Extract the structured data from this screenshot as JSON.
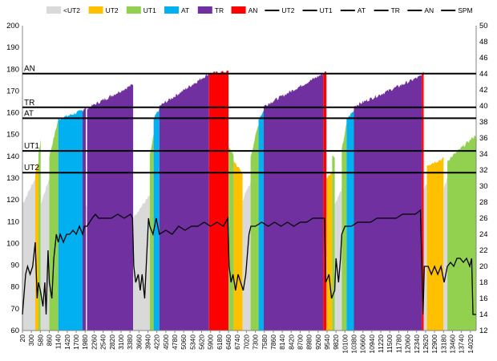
{
  "chart_data": {
    "type": "area",
    "legend_position": "top",
    "grid": false,
    "x": {
      "min": 20,
      "max": 14200,
      "ticks": [
        20,
        300,
        580,
        860,
        1140,
        1420,
        1700,
        1980,
        2260,
        2540,
        2820,
        3100,
        3380,
        3660,
        3940,
        4220,
        4500,
        4780,
        5060,
        5340,
        5620,
        5900,
        6180,
        6460,
        6740,
        7020,
        7300,
        7580,
        7860,
        8140,
        8420,
        8700,
        8980,
        9260,
        9540,
        9820,
        10100,
        10380,
        10660,
        10940,
        11220,
        11500,
        11780,
        12060,
        12340,
        12620,
        12900,
        13180,
        13460,
        13740,
        14020
      ]
    },
    "y_left": {
      "min": 60,
      "max": 200,
      "ticks": [
        60,
        70,
        80,
        90,
        100,
        110,
        120,
        130,
        140,
        150,
        160,
        170,
        180,
        190,
        200
      ]
    },
    "y_right": {
      "min": 12,
      "max": 50,
      "ticks": [
        12,
        14,
        16,
        18,
        20,
        22,
        24,
        26,
        28,
        30,
        32,
        34,
        36,
        38,
        40,
        42,
        44,
        46,
        48,
        50
      ]
    },
    "zones": [
      {
        "name": "<UT2",
        "color": "#d9d9d9"
      },
      {
        "name": "UT2",
        "color": "#ffc000"
      },
      {
        "name": "UT1",
        "color": "#92d050"
      },
      {
        "name": "AT",
        "color": "#00b0f0"
      },
      {
        "name": "TR",
        "color": "#7030a0"
      },
      {
        "name": "AN",
        "color": "#ff0000"
      }
    ],
    "thresholds": [
      {
        "name": "UT2",
        "value": 132.5
      },
      {
        "name": "UT1",
        "value": 142.5
      },
      {
        "name": "AT",
        "value": 157.5
      },
      {
        "name": "TR",
        "value": 162.5
      },
      {
        "name": "AN",
        "value": 178
      }
    ],
    "hr_segments": [
      {
        "x0": 20,
        "x1": 420,
        "y0": 118,
        "y1": 130,
        "zone": "<UT2"
      },
      {
        "x0": 420,
        "x1": 520,
        "y0": 132,
        "y1": 138,
        "zone": "UT2"
      },
      {
        "x0": 520,
        "x1": 590,
        "y0": 140,
        "y1": 148,
        "zone": "UT1"
      },
      {
        "x0": 590,
        "x1": 860,
        "y0": 118,
        "y1": 130,
        "zone": "<UT2"
      },
      {
        "x0": 860,
        "x1": 1140,
        "y0": 140,
        "y1": 157,
        "zone": "UT1"
      },
      {
        "x0": 1140,
        "x1": 1900,
        "y0": 157,
        "y1": 161,
        "zone": "AT"
      },
      {
        "x0": 1900,
        "x1": 2000,
        "y0": 161,
        "y1": 163,
        "zone": "TR"
      },
      {
        "x0": 2000,
        "x1": 2040,
        "y0": 117,
        "y1": 117,
        "zone": "<UT2"
      },
      {
        "x0": 2040,
        "x1": 3480,
        "y0": 162,
        "y1": 173,
        "zone": "TR"
      },
      {
        "x0": 3480,
        "x1": 4000,
        "y0": 112,
        "y1": 122,
        "zone": "<UT2"
      },
      {
        "x0": 4000,
        "x1": 4120,
        "y0": 140,
        "y1": 150,
        "zone": "UT1"
      },
      {
        "x0": 4120,
        "x1": 4300,
        "y0": 157,
        "y1": 162,
        "zone": "AT"
      },
      {
        "x0": 4300,
        "x1": 5850,
        "y0": 163,
        "y1": 178,
        "zone": "TR"
      },
      {
        "x0": 5850,
        "x1": 6460,
        "y0": 178,
        "y1": 179,
        "zone": "AN"
      },
      {
        "x0": 6460,
        "x1": 6620,
        "y0": 145,
        "y1": 140,
        "zone": "UT1"
      },
      {
        "x0": 6620,
        "x1": 6900,
        "y0": 138,
        "y1": 132,
        "zone": "UT2"
      },
      {
        "x0": 6900,
        "x1": 7150,
        "y0": 120,
        "y1": 128,
        "zone": "<UT2"
      },
      {
        "x0": 7150,
        "x1": 7400,
        "y0": 140,
        "y1": 155,
        "zone": "UT1"
      },
      {
        "x0": 7400,
        "x1": 7560,
        "y0": 157,
        "y1": 161,
        "zone": "AT"
      },
      {
        "x0": 7560,
        "x1": 9420,
        "y0": 163,
        "y1": 178,
        "zone": "TR"
      },
      {
        "x0": 9420,
        "x1": 9520,
        "y0": 178,
        "y1": 179,
        "zone": "AN"
      },
      {
        "x0": 9520,
        "x1": 9700,
        "y0": 130,
        "y1": 133,
        "zone": "UT2"
      },
      {
        "x0": 9700,
        "x1": 9780,
        "y0": 140,
        "y1": 140,
        "zone": "UT1"
      },
      {
        "x0": 9780,
        "x1": 10000,
        "y0": 118,
        "y1": 125,
        "zone": "<UT2"
      },
      {
        "x0": 10000,
        "x1": 10150,
        "y0": 143,
        "y1": 155,
        "zone": "UT1"
      },
      {
        "x0": 10150,
        "x1": 10380,
        "y0": 157,
        "y1": 161,
        "zone": "AT"
      },
      {
        "x0": 10380,
        "x1": 12500,
        "y0": 163,
        "y1": 177,
        "zone": "TR"
      },
      {
        "x0": 12500,
        "x1": 12560,
        "y0": 178,
        "y1": 178,
        "zone": "AN"
      },
      {
        "x0": 12560,
        "x1": 12660,
        "y0": 125,
        "y1": 128,
        "zone": "<UT2"
      },
      {
        "x0": 12660,
        "x1": 13180,
        "y0": 136,
        "y1": 139,
        "zone": "UT2"
      },
      {
        "x0": 13180,
        "x1": 13300,
        "y0": 125,
        "y1": 130,
        "zone": "<UT2"
      },
      {
        "x0": 13300,
        "x1": 14200,
        "y0": 138,
        "y1": 150,
        "zone": "UT1"
      }
    ],
    "spm": [
      [
        20,
        14
      ],
      [
        120,
        19
      ],
      [
        180,
        20
      ],
      [
        260,
        19
      ],
      [
        340,
        20
      ],
      [
        420,
        23
      ],
      [
        480,
        16
      ],
      [
        520,
        18
      ],
      [
        580,
        17
      ],
      [
        660,
        15
      ],
      [
        720,
        18
      ],
      [
        760,
        14
      ],
      [
        820,
        22
      ],
      [
        860,
        18
      ],
      [
        940,
        16
      ],
      [
        1000,
        21
      ],
      [
        1080,
        24
      ],
      [
        1140,
        23
      ],
      [
        1200,
        24
      ],
      [
        1300,
        23
      ],
      [
        1400,
        24
      ],
      [
        1500,
        24
      ],
      [
        1600,
        24.5
      ],
      [
        1700,
        24
      ],
      [
        1800,
        25
      ],
      [
        1900,
        24
      ],
      [
        1960,
        25
      ],
      [
        2040,
        25
      ],
      [
        2200,
        26
      ],
      [
        2300,
        26.5
      ],
      [
        2400,
        26
      ],
      [
        2600,
        26
      ],
      [
        2800,
        26
      ],
      [
        3000,
        26.5
      ],
      [
        3200,
        26
      ],
      [
        3400,
        26.5
      ],
      [
        3460,
        26
      ],
      [
        3500,
        20
      ],
      [
        3560,
        18
      ],
      [
        3640,
        19
      ],
      [
        3700,
        17
      ],
      [
        3760,
        19
      ],
      [
        3840,
        16
      ],
      [
        3900,
        21
      ],
      [
        3960,
        26
      ],
      [
        4000,
        25
      ],
      [
        4100,
        24
      ],
      [
        4200,
        26
      ],
      [
        4300,
        24
      ],
      [
        4500,
        24.5
      ],
      [
        4700,
        24
      ],
      [
        4900,
        25
      ],
      [
        5100,
        24.5
      ],
      [
        5300,
        25
      ],
      [
        5500,
        25
      ],
      [
        5700,
        25.5
      ],
      [
        5900,
        25
      ],
      [
        6100,
        25.5
      ],
      [
        6300,
        25
      ],
      [
        6440,
        26
      ],
      [
        6480,
        20
      ],
      [
        6540,
        18
      ],
      [
        6600,
        19
      ],
      [
        6680,
        17
      ],
      [
        6760,
        19
      ],
      [
        6840,
        18
      ],
      [
        6920,
        17
      ],
      [
        7000,
        19
      ],
      [
        7100,
        24
      ],
      [
        7160,
        25
      ],
      [
        7300,
        25
      ],
      [
        7500,
        25.5
      ],
      [
        7700,
        25
      ],
      [
        7900,
        25.5
      ],
      [
        8100,
        25
      ],
      [
        8300,
        25.5
      ],
      [
        8500,
        25
      ],
      [
        8700,
        25.5
      ],
      [
        8900,
        25.5
      ],
      [
        9100,
        26
      ],
      [
        9300,
        26
      ],
      [
        9460,
        26
      ],
      [
        9500,
        18
      ],
      [
        9600,
        19
      ],
      [
        9680,
        16
      ],
      [
        9780,
        17
      ],
      [
        9820,
        21
      ],
      [
        9900,
        18
      ],
      [
        9960,
        21
      ],
      [
        10000,
        24
      ],
      [
        10100,
        25
      ],
      [
        10300,
        25
      ],
      [
        10500,
        25.5
      ],
      [
        10700,
        25.5
      ],
      [
        10900,
        25.5
      ],
      [
        11100,
        26
      ],
      [
        11300,
        26
      ],
      [
        11500,
        26
      ],
      [
        11700,
        26
      ],
      [
        11900,
        26.5
      ],
      [
        12100,
        26.5
      ],
      [
        12300,
        26.5
      ],
      [
        12460,
        27
      ],
      [
        12540,
        14
      ],
      [
        12580,
        20
      ],
      [
        12700,
        20
      ],
      [
        12800,
        19
      ],
      [
        12900,
        20
      ],
      [
        13000,
        19
      ],
      [
        13100,
        20
      ],
      [
        13200,
        18
      ],
      [
        13300,
        20
      ],
      [
        13400,
        20.5
      ],
      [
        13500,
        20
      ],
      [
        13600,
        21
      ],
      [
        13700,
        21
      ],
      [
        13800,
        20.5
      ],
      [
        13900,
        21
      ],
      [
        14000,
        20
      ],
      [
        14060,
        21
      ],
      [
        14100,
        14
      ],
      [
        14200,
        14
      ]
    ]
  },
  "legend": [
    {
      "label": "<UT2",
      "kind": "patch",
      "color": "#d9d9d9"
    },
    {
      "label": "UT2",
      "kind": "patch",
      "color": "#ffc000"
    },
    {
      "label": "UT1",
      "kind": "patch",
      "color": "#92d050"
    },
    {
      "label": "AT",
      "kind": "patch",
      "color": "#00b0f0"
    },
    {
      "label": "TR",
      "kind": "patch",
      "color": "#7030a0"
    },
    {
      "label": "AN",
      "kind": "patch",
      "color": "#ff0000"
    },
    {
      "label": "UT2",
      "kind": "line",
      "color": "#000000"
    },
    {
      "label": "UT1",
      "kind": "line",
      "color": "#000000"
    },
    {
      "label": "AT",
      "kind": "line",
      "color": "#000000"
    },
    {
      "label": "TR",
      "kind": "line",
      "color": "#000000"
    },
    {
      "label": "AN",
      "kind": "line",
      "color": "#000000"
    },
    {
      "label": "SPM",
      "kind": "line",
      "color": "#000000"
    }
  ]
}
